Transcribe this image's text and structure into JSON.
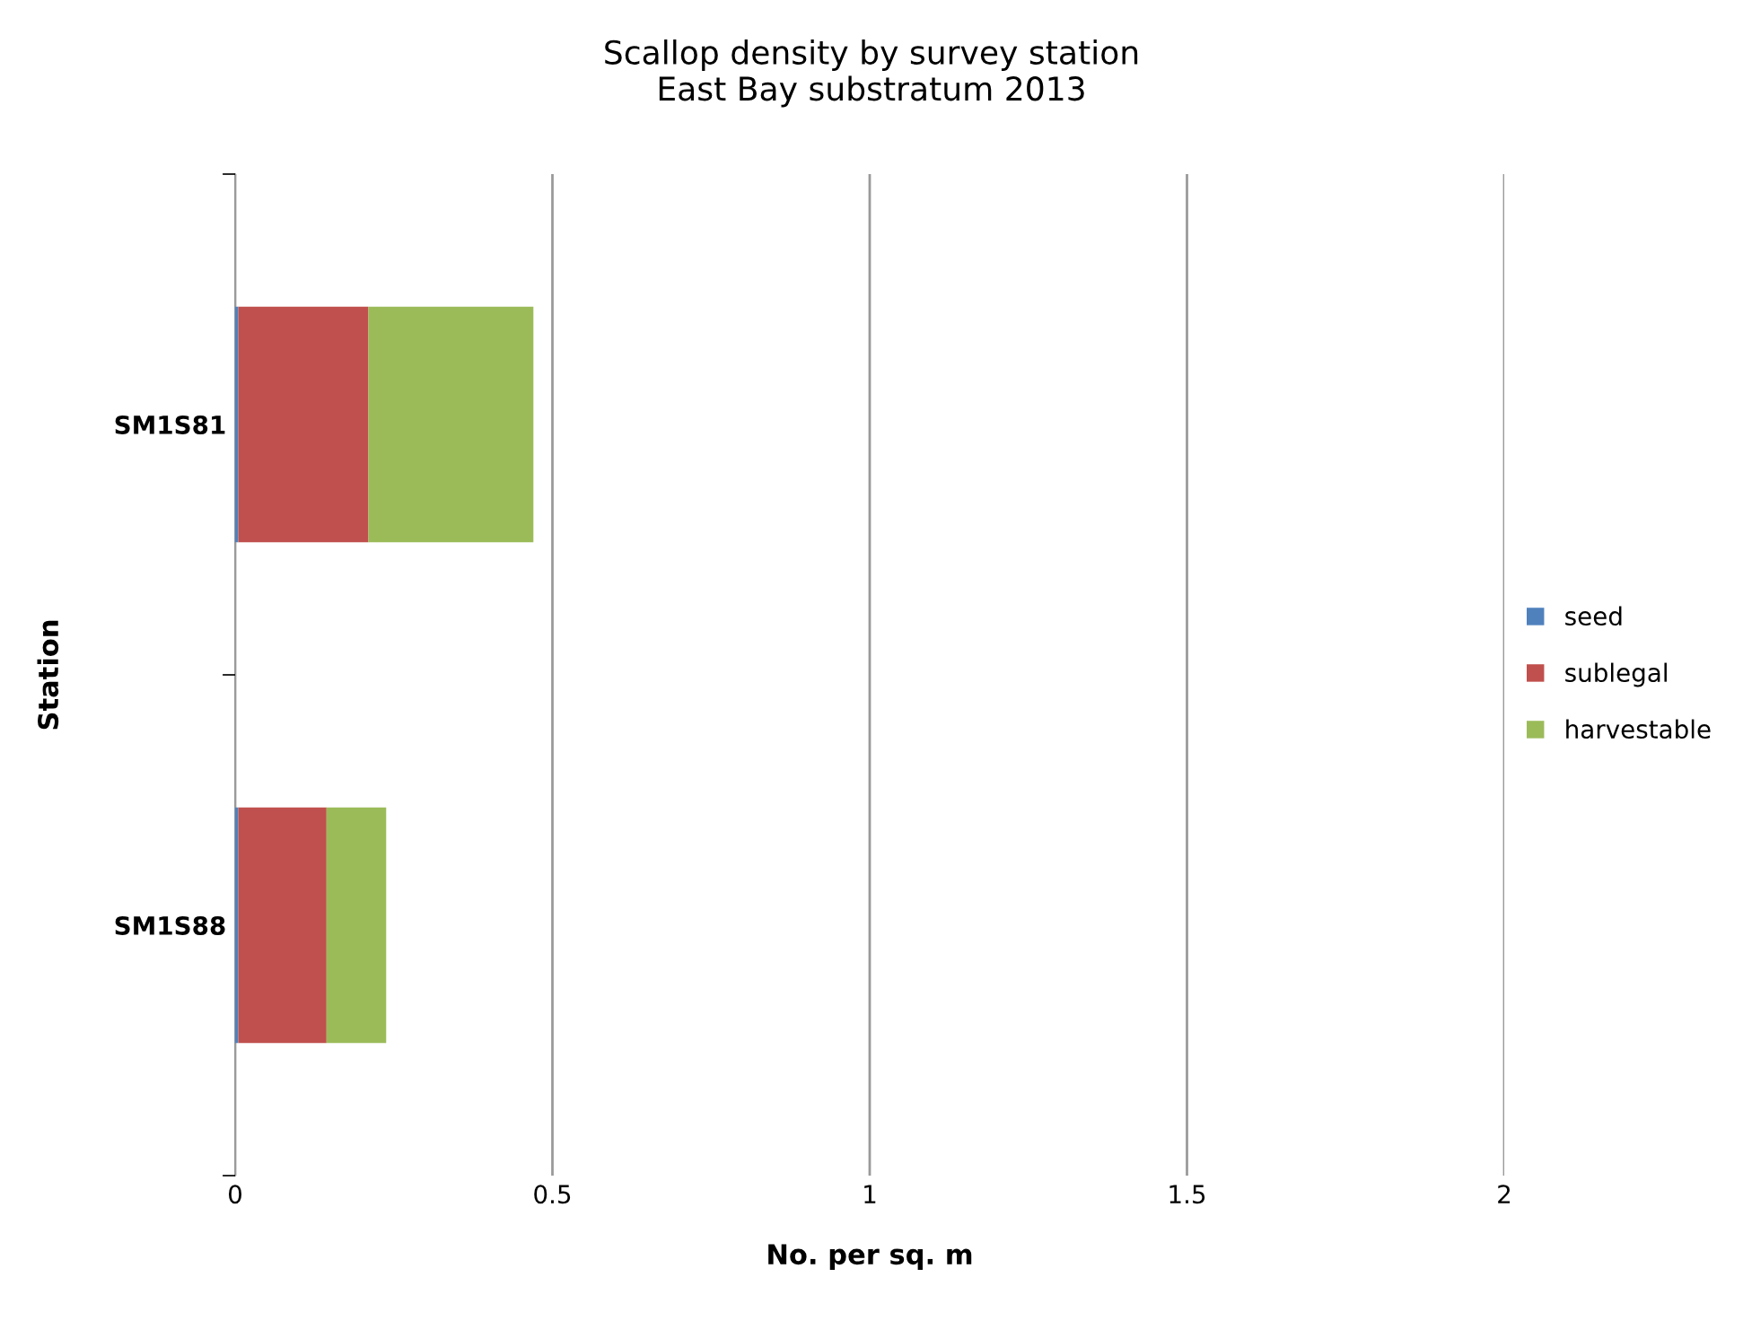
{
  "chart_data": {
    "type": "bar",
    "orientation": "horizontal",
    "stacked": true,
    "title": "Scallop density by survey station\nEast Bay substratum 2013",
    "xlabel": "No. per sq. m",
    "ylabel": "Station",
    "categories": [
      "SM1S81",
      "SM1S88"
    ],
    "series": [
      {
        "name": "seed",
        "color": "#4f81bd",
        "values": [
          0.005,
          0.005
        ]
      },
      {
        "name": "sublegal",
        "color": "#c0504d",
        "values": [
          0.205,
          0.139
        ]
      },
      {
        "name": "harvestable",
        "color": "#9bbb59",
        "values": [
          0.26,
          0.094
        ]
      }
    ],
    "xlim": [
      0,
      2
    ],
    "xticks": [
      0,
      0.5,
      1,
      1.5,
      2
    ],
    "grid": "x",
    "legend": "right"
  }
}
